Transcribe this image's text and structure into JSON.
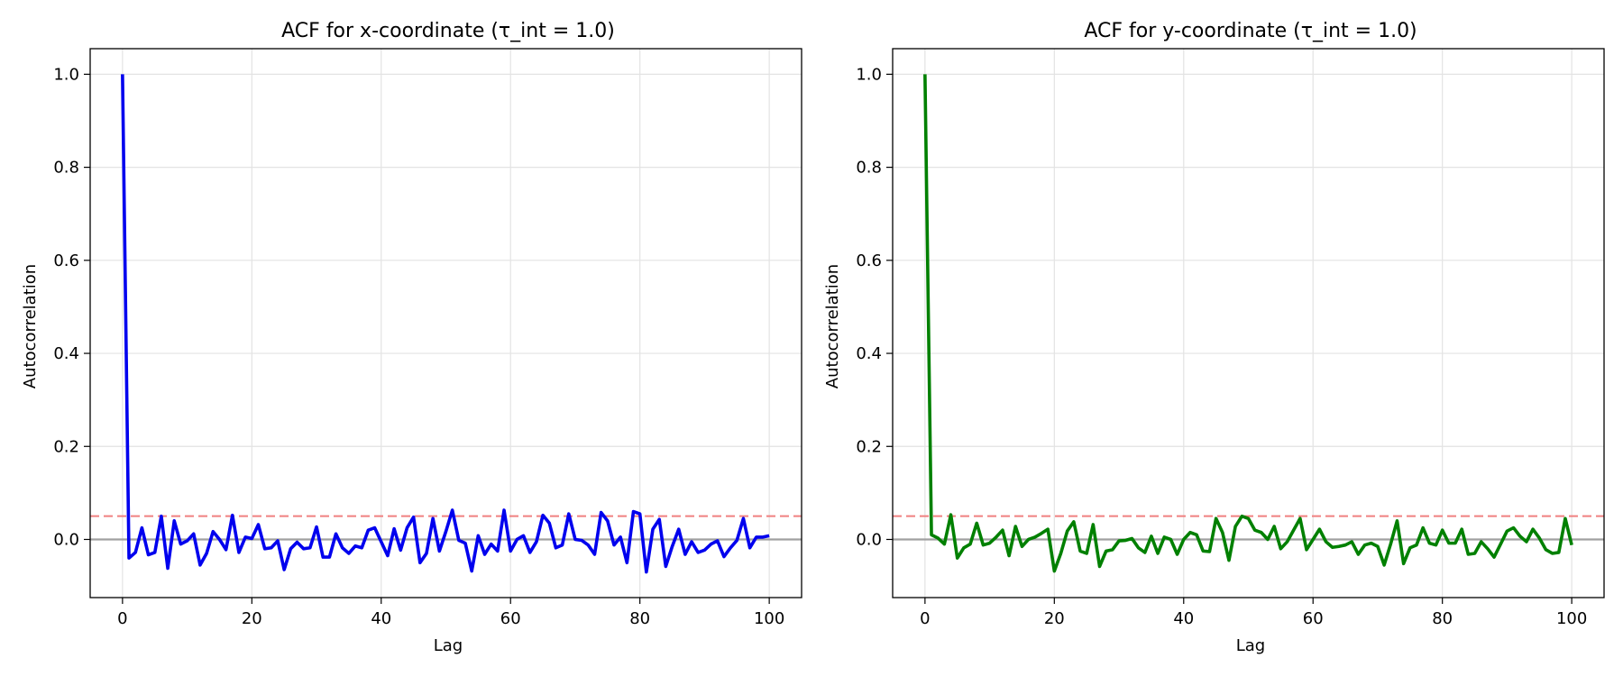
{
  "chart_data": [
    {
      "type": "line",
      "title": "ACF for x-coordinate (τ_int = 1.0)",
      "xlabel": "Lag",
      "ylabel": "Autocorrelation",
      "xlim": [
        -5,
        105
      ],
      "ylim": [
        -0.125,
        1.055
      ],
      "xticks": [
        0,
        20,
        40,
        60,
        80,
        100
      ],
      "yticks": [
        0.0,
        0.2,
        0.4,
        0.6,
        0.8,
        1.0
      ],
      "grid": true,
      "series": [
        {
          "color": "#0000ee",
          "x": [
            0,
            1,
            2,
            3,
            4,
            5,
            6,
            7,
            8,
            9,
            10,
            11,
            12,
            13,
            14,
            15,
            16,
            17,
            18,
            19,
            20,
            21,
            22,
            23,
            24,
            25,
            26,
            27,
            28,
            29,
            30,
            31,
            32,
            33,
            34,
            35,
            36,
            37,
            38,
            39,
            40,
            41,
            42,
            43,
            44,
            45,
            46,
            47,
            48,
            49,
            50,
            51,
            52,
            53,
            54,
            55,
            56,
            57,
            58,
            59,
            60,
            61,
            62,
            63,
            64,
            65,
            66,
            67,
            68,
            69,
            70,
            71,
            72,
            73,
            74,
            75,
            76,
            77,
            78,
            79,
            80,
            81,
            82,
            83,
            84,
            85,
            86,
            87,
            88,
            89,
            90,
            91,
            92,
            93,
            94,
            95,
            96,
            97,
            98,
            99,
            100
          ],
          "values": [
            1.0,
            -0.04,
            -0.028,
            0.025,
            -0.033,
            -0.028,
            0.05,
            -0.062,
            0.04,
            -0.01,
            -0.003,
            0.012,
            -0.055,
            -0.03,
            0.017,
            0.0,
            -0.022,
            0.052,
            -0.028,
            0.005,
            0.002,
            0.032,
            -0.02,
            -0.018,
            -0.003,
            -0.065,
            -0.02,
            -0.006,
            -0.02,
            -0.018,
            0.027,
            -0.038,
            -0.038,
            0.012,
            -0.018,
            -0.03,
            -0.014,
            -0.018,
            0.02,
            0.025,
            -0.005,
            -0.035,
            0.023,
            -0.023,
            0.025,
            0.048,
            -0.05,
            -0.03,
            0.045,
            -0.025,
            0.017,
            0.063,
            -0.002,
            -0.008,
            -0.068,
            0.008,
            -0.032,
            -0.01,
            -0.025,
            0.063,
            -0.025,
            0.0,
            0.008,
            -0.028,
            -0.005,
            0.052,
            0.035,
            -0.018,
            -0.012,
            0.055,
            0.0,
            -0.002,
            -0.012,
            -0.032,
            0.058,
            0.04,
            -0.012,
            0.005,
            -0.05,
            0.06,
            0.055,
            -0.07,
            0.022,
            0.043,
            -0.058,
            -0.015,
            0.022,
            -0.032,
            -0.005,
            -0.028,
            -0.023,
            -0.01,
            -0.003,
            -0.037,
            -0.018,
            -0.002,
            0.045,
            -0.018,
            0.005,
            0.005,
            0.008
          ]
        }
      ],
      "hlines": [
        {
          "y": 0.0,
          "color": "#a0a0a0",
          "style": "solid"
        },
        {
          "y": 0.05,
          "color": "#f08080",
          "style": "dashed"
        }
      ]
    },
    {
      "type": "line",
      "title": "ACF for y-coordinate (τ_int = 1.0)",
      "xlabel": "Lag",
      "ylabel": "Autocorrelation",
      "xlim": [
        -5,
        105
      ],
      "ylim": [
        -0.125,
        1.055
      ],
      "xticks": [
        0,
        20,
        40,
        60,
        80,
        100
      ],
      "yticks": [
        0.0,
        0.2,
        0.4,
        0.6,
        0.8,
        1.0
      ],
      "grid": true,
      "series": [
        {
          "color": "#008000",
          "x": [
            0,
            1,
            2,
            3,
            4,
            5,
            6,
            7,
            8,
            9,
            10,
            11,
            12,
            13,
            14,
            15,
            16,
            17,
            18,
            19,
            20,
            21,
            22,
            23,
            24,
            25,
            26,
            27,
            28,
            29,
            30,
            31,
            32,
            33,
            34,
            35,
            36,
            37,
            38,
            39,
            40,
            41,
            42,
            43,
            44,
            45,
            46,
            47,
            48,
            49,
            50,
            51,
            52,
            53,
            54,
            55,
            56,
            57,
            58,
            59,
            60,
            61,
            62,
            63,
            64,
            65,
            66,
            67,
            68,
            69,
            70,
            71,
            72,
            73,
            74,
            75,
            76,
            77,
            78,
            79,
            80,
            81,
            82,
            83,
            84,
            85,
            86,
            87,
            88,
            89,
            90,
            91,
            92,
            93,
            94,
            95,
            96,
            97,
            98,
            99,
            100
          ],
          "values": [
            1.0,
            0.01,
            0.003,
            -0.01,
            0.053,
            -0.04,
            -0.018,
            -0.01,
            0.035,
            -0.012,
            -0.008,
            0.005,
            0.02,
            -0.035,
            0.028,
            -0.015,
            0.0,
            0.005,
            0.013,
            0.022,
            -0.068,
            -0.03,
            0.018,
            0.038,
            -0.025,
            -0.03,
            0.032,
            -0.058,
            -0.025,
            -0.022,
            -0.003,
            -0.002,
            0.002,
            -0.018,
            -0.028,
            0.007,
            -0.03,
            0.005,
            0.0,
            -0.032,
            0.0,
            0.015,
            0.01,
            -0.025,
            -0.026,
            0.045,
            0.015,
            -0.045,
            0.028,
            0.05,
            0.045,
            0.02,
            0.015,
            0.0,
            0.028,
            -0.02,
            -0.005,
            0.02,
            0.045,
            -0.022,
            0.0,
            0.022,
            -0.005,
            -0.017,
            -0.015,
            -0.012,
            -0.005,
            -0.032,
            -0.012,
            -0.008,
            -0.015,
            -0.055,
            -0.01,
            0.04,
            -0.052,
            -0.018,
            -0.012,
            0.025,
            -0.008,
            -0.012,
            0.02,
            -0.008,
            -0.008,
            0.022,
            -0.032,
            -0.03,
            -0.005,
            -0.02,
            -0.038,
            -0.01,
            0.018,
            0.025,
            0.007,
            -0.005,
            0.022,
            0.003,
            -0.022,
            -0.03,
            -0.028,
            0.045,
            -0.012
          ]
        }
      ],
      "hlines": [
        {
          "y": 0.0,
          "color": "#a0a0a0",
          "style": "solid"
        },
        {
          "y": 0.05,
          "color": "#f08080",
          "style": "dashed"
        }
      ]
    }
  ]
}
